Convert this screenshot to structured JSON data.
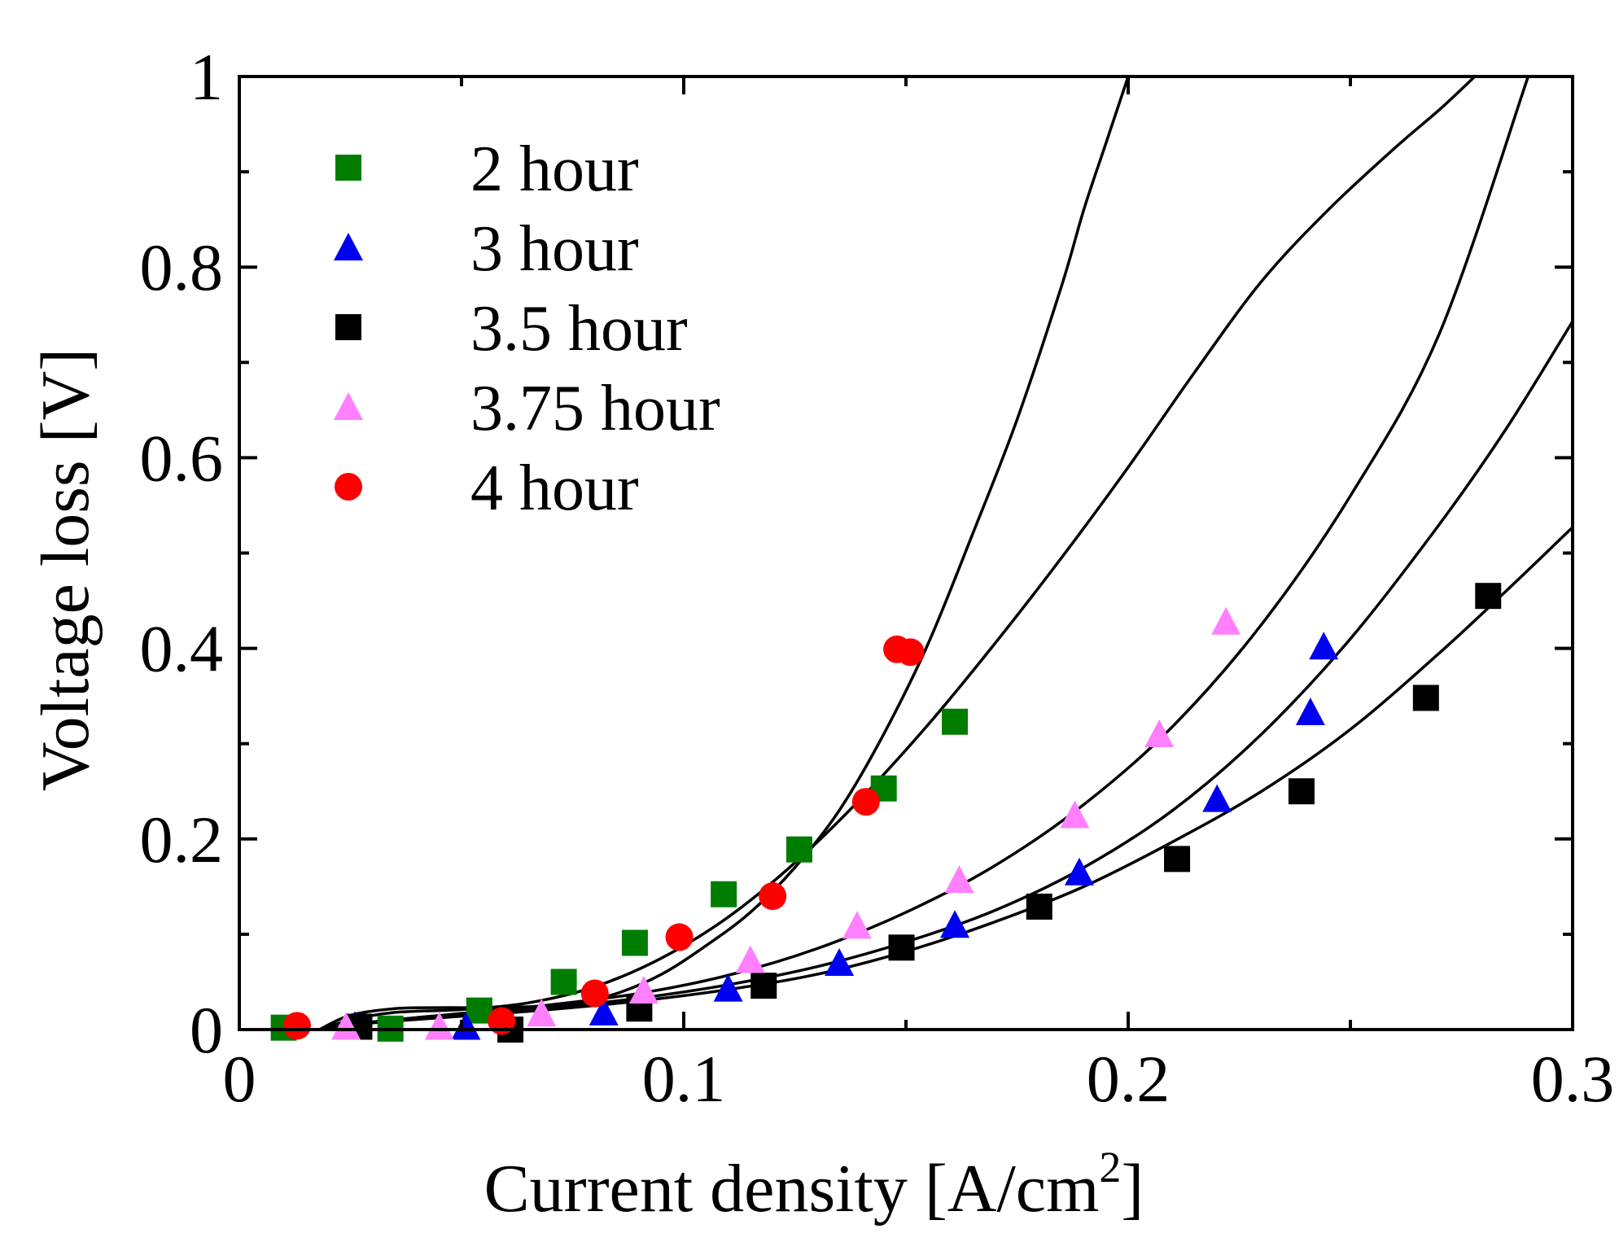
{
  "chart_data": {
    "type": "scatter",
    "title": "",
    "xlabel": "Current density [A/cm",
    "xlabel_superscript": "2",
    "xlabel_close": "]",
    "ylabel": "Voltage loss [V]",
    "xlim": [
      0,
      0.3
    ],
    "ylim": [
      0,
      1
    ],
    "x_ticks": [
      0,
      0.1,
      0.2,
      0.3
    ],
    "x_tick_labels": [
      "0",
      "0.1",
      "0.2",
      "0.3"
    ],
    "y_ticks": [
      0,
      0.2,
      0.4,
      0.6,
      0.8,
      1
    ],
    "y_tick_labels": [
      "0",
      "0.2",
      "0.4",
      "0.6",
      "0.8",
      "1"
    ],
    "grid": false,
    "legend_position": "top-left",
    "series": [
      {
        "name": "2 hour",
        "marker": "square",
        "color": "#007c00",
        "x": [
          0.01,
          0.034,
          0.054,
          0.073,
          0.089,
          0.109,
          0.126,
          0.145,
          0.161
        ],
        "y": [
          0.002,
          0.001,
          0.02,
          0.05,
          0.091,
          0.142,
          0.189,
          0.253,
          0.323
        ]
      },
      {
        "name": "3 hour",
        "marker": "triangle",
        "color": "#0000f0",
        "x": [
          0.026,
          0.051,
          0.082,
          0.11,
          0.135,
          0.161,
          0.189,
          0.22,
          0.241,
          0.244
        ],
        "y": [
          0.004,
          0.003,
          0.018,
          0.043,
          0.07,
          0.11,
          0.165,
          0.242,
          0.333,
          0.402
        ]
      },
      {
        "name": "3.5 hour",
        "marker": "square",
        "color": "#000000",
        "x": [
          0.027,
          0.061,
          0.09,
          0.118,
          0.149,
          0.18,
          0.211,
          0.239,
          0.267,
          0.281
        ],
        "y": [
          0.003,
          0.0,
          0.022,
          0.046,
          0.086,
          0.129,
          0.179,
          0.25,
          0.348,
          0.455
        ]
      },
      {
        "name": "3.75 hour",
        "marker": "triangle",
        "color": "#ff80ff",
        "x": [
          0.024,
          0.045,
          0.068,
          0.091,
          0.115,
          0.139,
          0.162,
          0.188,
          0.207,
          0.222
        ],
        "y": [
          0.003,
          0.003,
          0.017,
          0.041,
          0.073,
          0.109,
          0.157,
          0.225,
          0.31,
          0.428
        ]
      },
      {
        "name": "4 hour",
        "marker": "circle",
        "color": "#ff0000",
        "x": [
          0.013,
          0.059,
          0.08,
          0.099,
          0.12,
          0.141,
          0.148,
          0.151
        ],
        "y": [
          0.004,
          0.009,
          0.038,
          0.097,
          0.14,
          0.239,
          0.399,
          0.396
        ]
      }
    ],
    "fit_curves": [
      {
        "name": "2 hour fit",
        "color": "#000000",
        "x": [
          0.018,
          0.025,
          0.035,
          0.05,
          0.065,
          0.08,
          0.095,
          0.11,
          0.125,
          0.14,
          0.155,
          0.17,
          0.185,
          0.2,
          0.215,
          0.23,
          0.245,
          0.26,
          0.27,
          0.278
        ],
        "y": [
          0.0,
          0.01,
          0.018,
          0.021,
          0.028,
          0.045,
          0.075,
          0.118,
          0.175,
          0.243,
          0.32,
          0.405,
          0.495,
          0.59,
          0.69,
          0.785,
          0.86,
          0.925,
          0.965,
          1.0
        ]
      },
      {
        "name": "3 hour fit",
        "color": "#000000",
        "x": [
          0.018,
          0.03,
          0.05,
          0.07,
          0.09,
          0.11,
          0.13,
          0.15,
          0.17,
          0.19,
          0.21,
          0.23,
          0.25,
          0.27,
          0.285,
          0.3
        ],
        "y": [
          0.0,
          0.008,
          0.016,
          0.023,
          0.033,
          0.047,
          0.066,
          0.092,
          0.125,
          0.17,
          0.23,
          0.31,
          0.41,
          0.53,
          0.63,
          0.743
        ]
      },
      {
        "name": "3.5 hour fit",
        "color": "#000000",
        "x": [
          0.018,
          0.03,
          0.05,
          0.07,
          0.09,
          0.11,
          0.13,
          0.15,
          0.17,
          0.19,
          0.21,
          0.23,
          0.25,
          0.27,
          0.285,
          0.3
        ],
        "y": [
          0.0,
          0.007,
          0.014,
          0.021,
          0.03,
          0.042,
          0.058,
          0.082,
          0.113,
          0.15,
          0.197,
          0.25,
          0.315,
          0.395,
          0.46,
          0.527
        ]
      },
      {
        "name": "3.75 hour fit",
        "color": "#000000",
        "x": [
          0.018,
          0.03,
          0.05,
          0.07,
          0.09,
          0.11,
          0.13,
          0.15,
          0.17,
          0.19,
          0.21,
          0.23,
          0.25,
          0.27,
          0.29
        ],
        "y": [
          0.0,
          0.008,
          0.017,
          0.026,
          0.038,
          0.057,
          0.085,
          0.123,
          0.172,
          0.236,
          0.318,
          0.425,
          0.56,
          0.73,
          1.0
        ]
      },
      {
        "name": "4 hour fit",
        "color": "#000000",
        "x": [
          0.018,
          0.025,
          0.035,
          0.045,
          0.055,
          0.065,
          0.075,
          0.085,
          0.095,
          0.105,
          0.115,
          0.125,
          0.135,
          0.145,
          0.155,
          0.165,
          0.175,
          0.185,
          0.19,
          0.195,
          0.2
        ],
        "y": [
          0.0,
          0.015,
          0.022,
          0.023,
          0.023,
          0.024,
          0.027,
          0.038,
          0.058,
          0.088,
          0.123,
          0.17,
          0.23,
          0.31,
          0.405,
          0.52,
          0.64,
          0.78,
          0.86,
          0.93,
          1.0
        ]
      }
    ]
  }
}
